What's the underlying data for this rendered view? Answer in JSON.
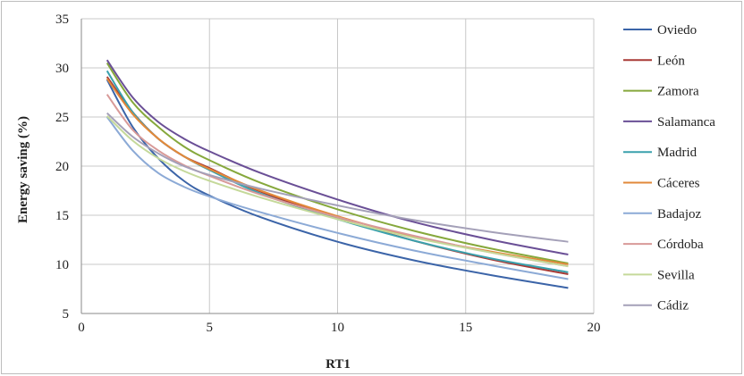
{
  "chart_data": {
    "type": "line",
    "title": "",
    "xlabel": "RT1",
    "ylabel": "Energy saving (%)",
    "xlim": [
      0,
      20
    ],
    "ylim": [
      5,
      35
    ],
    "x_ticks": [
      0,
      5,
      10,
      15,
      20
    ],
    "y_ticks": [
      5,
      10,
      15,
      20,
      25,
      30,
      35
    ],
    "grid": true,
    "legend_position": "right",
    "x": [
      1,
      2,
      3,
      4,
      5,
      7,
      10,
      13,
      16,
      19
    ],
    "series": [
      {
        "name": "Oviedo",
        "color": "#3b64a8",
        "values": [
          28.8,
          24.0,
          20.8,
          18.5,
          17.0,
          14.8,
          12.3,
          10.4,
          8.9,
          7.6
        ]
      },
      {
        "name": "León",
        "color": "#a83a36",
        "values": [
          29.1,
          25.5,
          22.8,
          21.0,
          19.8,
          17.4,
          14.7,
          12.4,
          10.5,
          9.0
        ]
      },
      {
        "name": "Zamora",
        "color": "#86a83c",
        "values": [
          30.5,
          26.5,
          24.0,
          22.0,
          20.6,
          18.3,
          15.6,
          13.4,
          11.6,
          10.1
        ]
      },
      {
        "name": "Salamanca",
        "color": "#6a4f96",
        "values": [
          30.8,
          27.0,
          24.5,
          22.8,
          21.5,
          19.3,
          16.6,
          14.3,
          12.5,
          11.0
        ]
      },
      {
        "name": "Madrid",
        "color": "#3aa1ad",
        "values": [
          29.7,
          25.5,
          22.8,
          21.0,
          19.6,
          17.2,
          14.6,
          12.4,
          10.6,
          9.2
        ]
      },
      {
        "name": "Cáceres",
        "color": "#e2893a",
        "values": [
          28.9,
          25.3,
          22.8,
          21.0,
          19.7,
          17.5,
          14.9,
          12.8,
          11.3,
          10.0
        ]
      },
      {
        "name": "Badajoz",
        "color": "#8caad6",
        "values": [
          25.0,
          21.6,
          19.3,
          17.9,
          16.9,
          15.3,
          13.2,
          11.4,
          9.9,
          8.5
        ]
      },
      {
        "name": "Córdoba",
        "color": "#d89a98",
        "values": [
          27.3,
          23.7,
          21.6,
          20.1,
          19.0,
          17.1,
          14.8,
          12.9,
          11.2,
          9.8
        ]
      },
      {
        "name": "Sevilla",
        "color": "#c5d99a",
        "values": [
          25.1,
          22.6,
          20.8,
          19.5,
          18.5,
          16.8,
          14.6,
          12.7,
          11.2,
          9.8
        ]
      },
      {
        "name": "Cádiz",
        "color": "#a4a0b8",
        "values": [
          25.4,
          23.0,
          21.3,
          20.0,
          19.1,
          17.7,
          16.0,
          14.5,
          13.3,
          12.3
        ]
      }
    ]
  }
}
